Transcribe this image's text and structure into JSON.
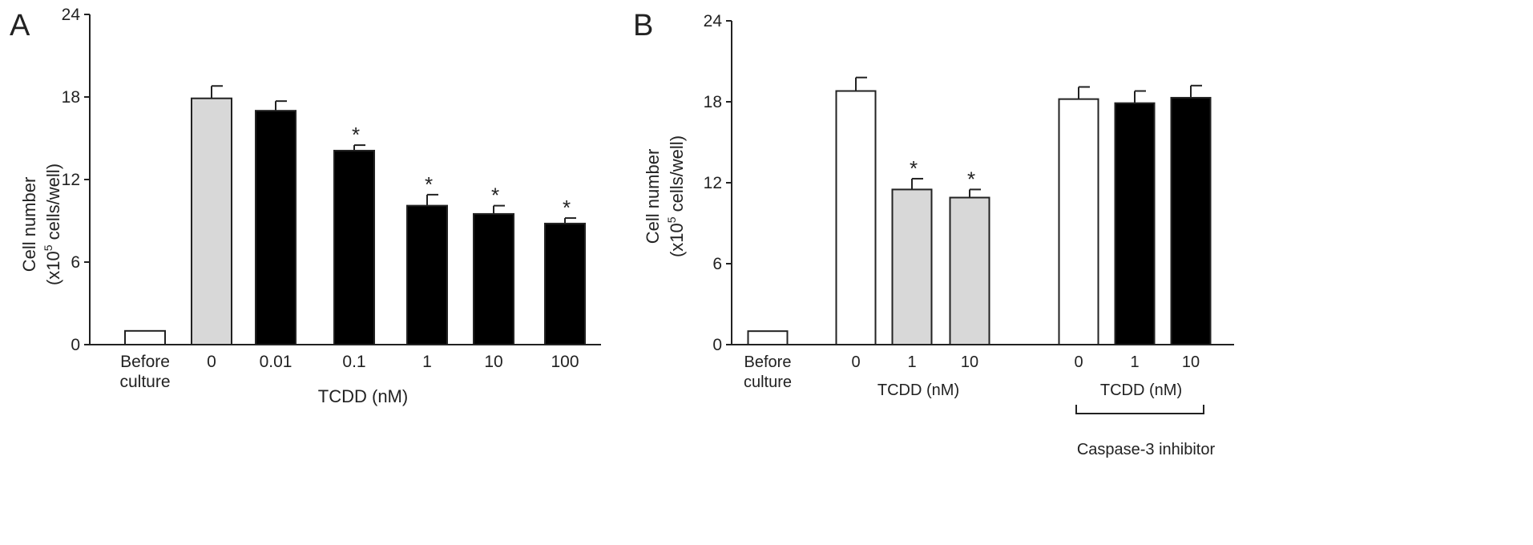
{
  "chart_data": [
    {
      "panel_label": "A",
      "type": "bar",
      "ylabel_line1": "Cell number",
      "ylabel_line2_prefix": "(x10",
      "ylabel_superscript": "5",
      "ylabel_line2_suffix": " cells/well)",
      "ylim": [
        0,
        24
      ],
      "yticks": [
        "0",
        "6",
        "12",
        "18",
        "24"
      ],
      "xlabel": "TCDD (nM)",
      "categories": [
        [
          "Before",
          "culture"
        ],
        [
          "0"
        ],
        [
          "0.01"
        ],
        [
          "0.1"
        ],
        [
          "1"
        ],
        [
          "10"
        ],
        [
          "100"
        ]
      ],
      "values": [
        1.0,
        17.9,
        17.0,
        14.1,
        10.1,
        9.5,
        8.8
      ],
      "errors": [
        0,
        0.9,
        0.7,
        0.4,
        0.8,
        0.6,
        0.4
      ],
      "fills": [
        "#ffffff",
        "#d8d8d8",
        "#000000",
        "#000000",
        "#000000",
        "#000000",
        "#000000"
      ],
      "significant": [
        false,
        false,
        false,
        true,
        true,
        true,
        true
      ],
      "sig_marker": "*"
    },
    {
      "panel_label": "B",
      "type": "bar",
      "ylabel_line1": "Cell number",
      "ylabel_line2_prefix": "(x10",
      "ylabel_superscript": "5",
      "ylabel_line2_suffix": " cells/well)",
      "ylim": [
        0,
        24
      ],
      "yticks": [
        "0",
        "6",
        "12",
        "18",
        "24"
      ],
      "categories": [
        [
          "Before",
          "culture"
        ],
        [
          "0"
        ],
        [
          "1"
        ],
        [
          "10"
        ],
        [
          "0"
        ],
        [
          "1"
        ],
        [
          "10"
        ]
      ],
      "values": [
        1.0,
        18.8,
        11.5,
        10.9,
        18.2,
        17.9,
        18.3
      ],
      "errors": [
        0,
        1.0,
        0.8,
        0.6,
        0.9,
        0.9,
        0.9
      ],
      "fills": [
        "#ffffff",
        "#ffffff",
        "#d8d8d8",
        "#d8d8d8",
        "#ffffff",
        "#000000",
        "#000000"
      ],
      "significant": [
        false,
        false,
        true,
        true,
        false,
        false,
        false
      ],
      "sig_marker": "*",
      "group_label_1": "TCDD (nM)",
      "group_label_2": "TCDD (nM)",
      "bracket_label": "Caspase-3 inhibitor"
    }
  ]
}
